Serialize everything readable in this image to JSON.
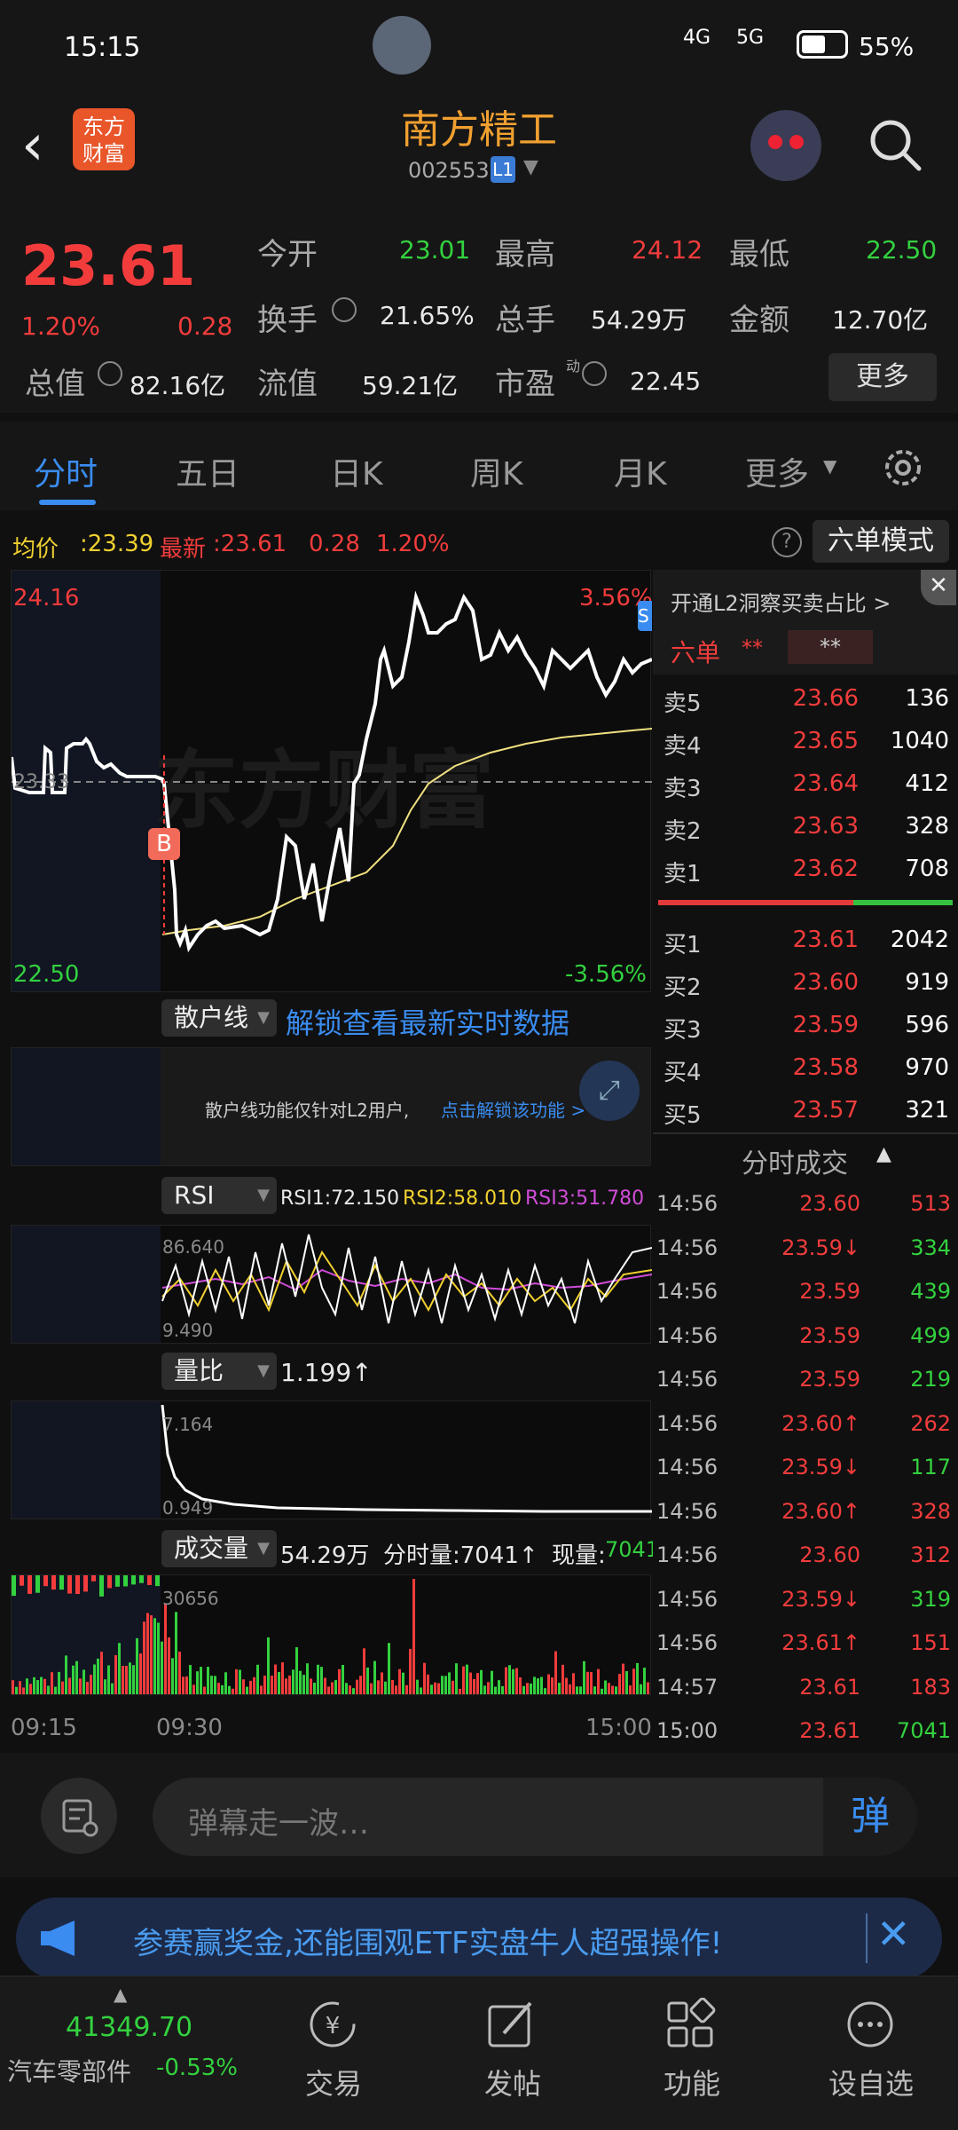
{
  "status_bar": {
    "time": "15:15",
    "signal1": "4G",
    "signal2": "5G",
    "battery": "55%"
  },
  "header": {
    "logo_text": "东方财富",
    "title": "南方精工",
    "code": "002553",
    "level": "L1"
  },
  "quote": {
    "price": "23.61",
    "change_pct": "1.20%",
    "change": "0.28",
    "open_label": "今开",
    "open": "23.01",
    "high_label": "最高",
    "high": "24.12",
    "low_label": "最低",
    "low": "22.50",
    "turnover_label": "换手",
    "turnover": "21.65%",
    "volume_label": "总手",
    "volume": "54.29万",
    "amount_label": "金额",
    "amount": "12.70亿",
    "mcap_label": "总值",
    "mcap": "82.16亿",
    "float_label": "流值",
    "float": "59.21亿",
    "pe_label": "市盈",
    "pe_sup": "动",
    "pe": "22.45",
    "more": "更多"
  },
  "tabs": [
    "分时",
    "五日",
    "日K",
    "周K",
    "月K",
    "更多"
  ],
  "infoline": {
    "avg_label": "均价",
    "avg": ":23.39",
    "latest_label": "最新",
    "latest": ":23.61",
    "chg": "0.28",
    "pct": "1.20%",
    "mode": "六单模式"
  },
  "main_chart": {
    "top_price": "24.16",
    "bottom_price": "22.50",
    "mid_price": "23.33",
    "top_pct": "3.56%",
    "bottom_pct": "-3.56%",
    "watermark": "东方财富",
    "buy_marker": "B",
    "sell_marker": "S"
  },
  "retail": {
    "pill": "散户线",
    "unlock": "解锁查看最新实时数据",
    "note": "散户线功能仅针对L2用户,",
    "note_link": "点击解锁该功能 >"
  },
  "rsi": {
    "pill": "RSI",
    "rsi1": "RSI1:72.150",
    "rsi2": "RSI2:58.010",
    "rsi3": "RSI3:51.780",
    "top": "86.640",
    "bottom": "9.490"
  },
  "vol_ratio": {
    "pill": "量比",
    "value": "1.199↑",
    "top": "7.164",
    "bottom": "0.949"
  },
  "volume": {
    "pill": "成交量",
    "total": "54.29万",
    "minute": "分时量:7041↑",
    "current_label": "现量:",
    "current": "7041",
    "top": "30656"
  },
  "time_axis": {
    "t1": "09:15",
    "t2": "09:30",
    "t3": "15:00"
  },
  "orderbook": {
    "l2_promo": "开通L2洞察买卖占比 >",
    "six_label": "六单",
    "six_v1": "**",
    "six_v2": "**",
    "asks": [
      {
        "label": "卖5",
        "price": "23.66",
        "vol": "136"
      },
      {
        "label": "卖4",
        "price": "23.65",
        "vol": "1040"
      },
      {
        "label": "卖3",
        "price": "23.64",
        "vol": "412"
      },
      {
        "label": "卖2",
        "price": "23.63",
        "vol": "328"
      },
      {
        "label": "卖1",
        "price": "23.62",
        "vol": "708"
      }
    ],
    "bids": [
      {
        "label": "买1",
        "price": "23.61",
        "vol": "2042"
      },
      {
        "label": "买2",
        "price": "23.60",
        "vol": "919"
      },
      {
        "label": "买3",
        "price": "23.59",
        "vol": "596"
      },
      {
        "label": "买4",
        "price": "23.58",
        "vol": "970"
      },
      {
        "label": "买5",
        "price": "23.57",
        "vol": "321"
      }
    ],
    "ticks_title": "分时成交",
    "ticks": [
      {
        "time": "14:56",
        "price": "23.60",
        "vol": "513",
        "dir": "",
        "vc": "red"
      },
      {
        "time": "14:56",
        "price": "23.59↓",
        "vol": "334",
        "dir": "down",
        "vc": "green"
      },
      {
        "time": "14:56",
        "price": "23.59",
        "vol": "439",
        "dir": "",
        "vc": "green"
      },
      {
        "time": "14:56",
        "price": "23.59",
        "vol": "499",
        "dir": "",
        "vc": "green"
      },
      {
        "time": "14:56",
        "price": "23.59",
        "vol": "219",
        "dir": "",
        "vc": "green"
      },
      {
        "time": "14:56",
        "price": "23.60↑",
        "vol": "262",
        "dir": "up",
        "vc": "red"
      },
      {
        "time": "14:56",
        "price": "23.59↓",
        "vol": "117",
        "dir": "down",
        "vc": "green"
      },
      {
        "time": "14:56",
        "price": "23.60↑",
        "vol": "328",
        "dir": "up",
        "vc": "red"
      },
      {
        "time": "14:56",
        "price": "23.60",
        "vol": "312",
        "dir": "",
        "vc": "red"
      },
      {
        "time": "14:56",
        "price": "23.59↓",
        "vol": "319",
        "dir": "down",
        "vc": "green"
      },
      {
        "time": "14:56",
        "price": "23.61↑",
        "vol": "151",
        "dir": "up",
        "vc": "red"
      },
      {
        "time": "14:57",
        "price": "23.61",
        "vol": "183",
        "dir": "",
        "vc": "red"
      },
      {
        "time": "15:00",
        "price": "23.61",
        "vol": "7041",
        "dir": "",
        "vc": "green"
      }
    ]
  },
  "barrage": {
    "placeholder": "弹幕走一波…",
    "send": "弹"
  },
  "banner": {
    "text": "参赛赢奖金,还能围观ETF实盘牛人超强操作!"
  },
  "bottom_nav": {
    "index_value": "41349.70",
    "index_name": "汽车零部件",
    "index_pct": "-0.53%",
    "items": [
      "交易",
      "发帖",
      "功能",
      "设自选"
    ]
  },
  "colors": {
    "up": "#f23c3c",
    "down": "#33d13f",
    "accent": "#3a8cf0",
    "price_line": "#ffffff",
    "avg_line": "#f0e080"
  }
}
